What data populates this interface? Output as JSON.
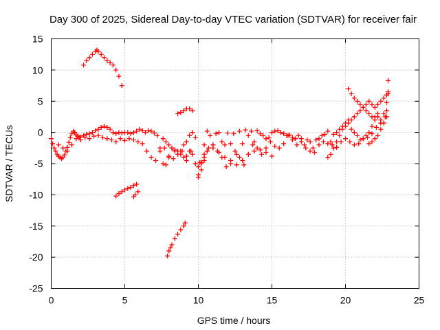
{
  "chart_data": {
    "type": "scatter",
    "title": "Day 300 of 2025, Sidereal Day-to-day VTEC variation (SDTVAR) for receiver fair",
    "xlabel": "GPS time / hours",
    "ylabel": "SDTVAR / TECUs",
    "xlim": [
      0,
      25
    ],
    "ylim": [
      -25,
      15
    ],
    "xticks": [
      "0",
      "5",
      "10",
      "15",
      "20",
      "25"
    ],
    "yticks": [
      "15",
      "10",
      "5",
      "0",
      "-5",
      "-10",
      "-15",
      "-20",
      "-25"
    ],
    "grid": true,
    "marker": "+",
    "color": "#ff0000",
    "series": [
      {
        "name": "SDTVAR",
        "x": [
          0.0,
          0.1,
          0.2,
          0.3,
          0.4,
          0.5,
          0.6,
          0.7,
          0.8,
          0.9,
          1.0,
          1.1,
          1.2,
          1.3,
          1.4,
          1.5,
          1.6,
          1.7,
          1.8,
          1.9,
          2.0,
          2.2,
          2.4,
          2.6,
          2.8,
          3.0,
          3.2,
          3.4,
          3.6,
          3.8,
          4.0,
          4.2,
          4.4,
          4.6,
          4.8,
          5.0,
          5.2,
          5.4,
          5.6,
          5.8,
          6.0,
          6.2,
          6.4,
          6.6,
          6.8,
          7.0,
          7.2,
          7.4,
          7.6,
          7.8,
          8.0,
          8.2,
          8.4,
          8.6,
          8.8,
          9.0,
          9.2,
          9.4,
          9.6,
          9.8,
          10.0,
          10.2,
          10.4,
          10.6,
          10.8,
          11.0,
          11.2,
          11.4,
          11.6,
          11.8,
          12.0,
          12.2,
          12.4,
          12.6,
          12.8,
          13.0,
          13.2,
          13.4,
          13.6,
          13.8,
          14.0,
          14.2,
          14.4,
          14.6,
          14.8,
          15.0,
          15.2,
          15.4,
          15.6,
          15.8,
          16.0,
          16.2,
          16.4,
          16.6,
          16.8,
          17.0,
          17.2,
          17.4,
          17.6,
          17.8,
          18.0,
          18.2,
          18.4,
          18.6,
          18.8,
          19.0,
          19.2,
          19.4,
          19.6,
          19.8,
          20.0,
          20.2,
          20.4,
          20.6,
          20.8,
          21.0,
          21.2,
          21.4,
          21.6,
          21.8,
          22.0,
          22.2,
          22.4,
          22.6,
          22.8,
          0.5,
          0.8,
          1.1,
          1.4,
          1.7,
          2.0,
          2.3,
          2.6,
          2.9,
          3.2,
          3.5,
          3.8,
          4.1,
          4.4,
          4.7,
          5.0,
          5.3,
          5.6,
          5.9,
          6.2,
          6.5,
          6.8,
          7.1,
          7.4,
          7.7,
          8.0,
          8.3,
          8.6,
          8.9,
          9.2,
          9.5,
          9.8,
          10.1,
          10.4,
          10.7,
          11.0,
          11.3,
          11.6,
          11.9,
          12.2,
          12.5,
          12.8,
          13.1,
          13.4,
          13.7,
          14.0,
          14.3,
          14.6,
          14.9,
          15.2,
          15.5,
          15.8,
          16.1,
          16.4,
          16.7,
          17.0,
          17.3,
          17.6,
          17.9,
          18.2,
          18.5,
          18.8,
          19.1,
          19.4,
          19.7,
          20.0,
          20.3,
          20.6,
          20.9,
          21.2,
          21.5,
          21.8,
          22.1,
          22.4,
          22.7,
          2.2,
          2.4,
          2.6,
          2.8,
          3.0,
          3.1,
          3.2,
          3.4,
          3.6,
          3.8,
          4.0,
          4.2,
          4.4,
          4.6,
          4.8,
          4.4,
          4.6,
          4.8,
          5.0,
          5.2,
          5.4,
          5.6,
          5.8,
          5.9,
          5.7,
          5.6,
          7.9,
          8.0,
          8.1,
          8.2,
          8.4,
          8.6,
          8.8,
          9.0,
          9.1,
          8.6,
          8.8,
          9.0,
          9.2,
          9.4,
          9.6,
          7.6,
          7.8,
          8.0,
          8.2,
          8.4,
          8.6,
          8.8,
          9.0,
          9.2,
          9.4,
          9.6,
          9.8,
          10.0,
          10.2,
          10.4,
          10.6,
          10.0,
          10.2,
          10.4,
          10.6,
          11.0,
          11.4,
          11.8,
          12.2,
          12.6,
          13.0,
          13.4,
          13.8,
          14.2,
          14.6,
          15.0,
          18.8,
          19.0,
          19.2,
          19.4,
          19.6,
          19.8,
          20.0,
          20.2,
          20.4,
          20.6,
          20.8,
          21.0,
          21.2,
          21.4,
          21.6,
          21.8,
          22.0,
          22.2,
          22.4,
          22.6,
          22.8,
          22.9,
          20.2,
          20.4,
          20.6,
          20.8,
          21.0,
          21.2,
          21.4,
          21.6,
          21.8,
          22.0,
          22.2,
          22.4,
          22.6,
          22.8,
          22.9,
          22.9,
          21.6,
          21.8,
          22.0,
          22.2,
          22.4,
          22.6,
          22.8
        ],
        "y": [
          -1.0,
          -1.8,
          -2.5,
          -3.0,
          -3.5,
          -3.8,
          -4.0,
          -4.2,
          -4.0,
          -3.6,
          -3.0,
          -2.4,
          -1.6,
          -0.8,
          -0.2,
          0.2,
          0.0,
          -0.4,
          -0.6,
          -0.8,
          -0.7,
          -0.5,
          -0.3,
          -0.2,
          0.0,
          0.3,
          0.5,
          0.8,
          1.0,
          0.8,
          0.5,
          0.0,
          -0.2,
          0.0,
          -0.1,
          0.0,
          0.0,
          -0.2,
          0.0,
          0.2,
          0.5,
          0.3,
          0.0,
          0.3,
          0.2,
          -0.1,
          -0.5,
          -2.5,
          -5.0,
          -5.2,
          -4.0,
          -2.5,
          -3.0,
          -3.5,
          -3.0,
          -2.0,
          -1.5,
          -0.5,
          0.0,
          -0.8,
          -6.8,
          -5.0,
          -2.0,
          0.2,
          -0.5,
          -2.0,
          -0.2,
          0.0,
          -1.5,
          -2.0,
          -0.1,
          -1.8,
          -0.2,
          -3.5,
          0.2,
          -1.8,
          0.4,
          -0.5,
          0.2,
          -1.5,
          0.3,
          -0.2,
          -0.5,
          -2.5,
          -0.8,
          0.0,
          0.2,
          0.3,
          0.0,
          -0.2,
          -0.5,
          -0.4,
          -0.8,
          -1.0,
          -0.5,
          -1.0,
          -2.0,
          -1.2,
          -1.5,
          -2.5,
          -1.2,
          -1.0,
          -0.5,
          -0.3,
          0.2,
          -1.5,
          -0.3,
          0.0,
          0.5,
          1.0,
          1.5,
          2.0,
          0.5,
          0.0,
          -0.5,
          -1.2,
          -1.0,
          -0.5,
          0.0,
          1.0,
          2.0,
          2.5,
          1.5,
          3.0,
          3.5,
          -2.0,
          -2.5,
          -3.0,
          -2.0,
          -1.0,
          -1.2,
          -0.8,
          -1.0,
          -0.6,
          -0.5,
          -0.8,
          -1.0,
          -1.2,
          -1.5,
          -1.0,
          -1.3,
          -1.0,
          -1.2,
          -1.5,
          -1.8,
          -3.0,
          -4.0,
          -4.5,
          -3.0,
          -2.5,
          -3.8,
          -4.2,
          -3.5,
          -3.0,
          -4.5,
          -3.0,
          -5.0,
          -4.8,
          -3.5,
          -2.5,
          -2.0,
          -3.0,
          -4.0,
          -5.5,
          -4.5,
          -3.0,
          -4.0,
          -5.2,
          -3.5,
          -2.0,
          -2.5,
          -3.5,
          -1.0,
          -1.5,
          -2.2,
          -2.5,
          -1.8,
          -0.5,
          -1.2,
          -2.0,
          -1.5,
          -2.5,
          -3.0,
          -3.2,
          -2.0,
          -1.5,
          -1.8,
          -2.0,
          -2.4,
          -1.5,
          -1.0,
          -1.5,
          -2.0,
          -1.8,
          -1.0,
          -0.8,
          -0.2,
          0.8,
          1.5,
          2.5,
          10.8,
          11.5,
          12.0,
          12.5,
          13.0,
          13.2,
          13.0,
          12.5,
          12.0,
          11.5,
          11.2,
          10.8,
          10.0,
          9.0,
          7.5,
          -10.2,
          -9.8,
          -9.5,
          -9.2,
          -9.0,
          -8.8,
          -8.5,
          -8.3,
          -9.5,
          -10.0,
          -10.3,
          -19.8,
          -19.0,
          -18.5,
          -18.0,
          -17.0,
          -16.3,
          -15.6,
          -15.0,
          -14.5,
          3.0,
          3.2,
          3.5,
          3.8,
          3.8,
          3.5,
          -1.0,
          -1.5,
          -2.0,
          -2.5,
          -2.8,
          -3.0,
          -3.5,
          -4.0,
          -3.8,
          -3.0,
          -3.5,
          -5.0,
          -5.5,
          -4.8,
          -4.0,
          -3.0,
          -7.2,
          -6.0,
          -4.5,
          -3.0,
          -2.5,
          -3.2,
          -4.0,
          -5.0,
          -5.2,
          -4.5,
          -3.5,
          -3.0,
          -2.8,
          -3.2,
          -3.8,
          -4.0,
          -3.5,
          -2.5,
          -1.5,
          -0.5,
          0.5,
          1.0,
          1.5,
          2.0,
          2.5,
          3.0,
          3.5,
          4.0,
          4.5,
          5.0,
          4.5,
          4.0,
          4.5,
          5.0,
          5.5,
          6.0,
          6.5,
          7.0,
          6.2,
          5.5,
          5.0,
          4.5,
          4.0,
          3.5,
          3.0,
          2.5,
          2.5,
          3.0,
          2.0,
          1.5,
          4.8,
          8.3,
          6.2,
          -1.8,
          -1.5,
          -1.0,
          -0.5,
          0.5,
          1.5,
          2.5
        ]
      }
    ]
  }
}
